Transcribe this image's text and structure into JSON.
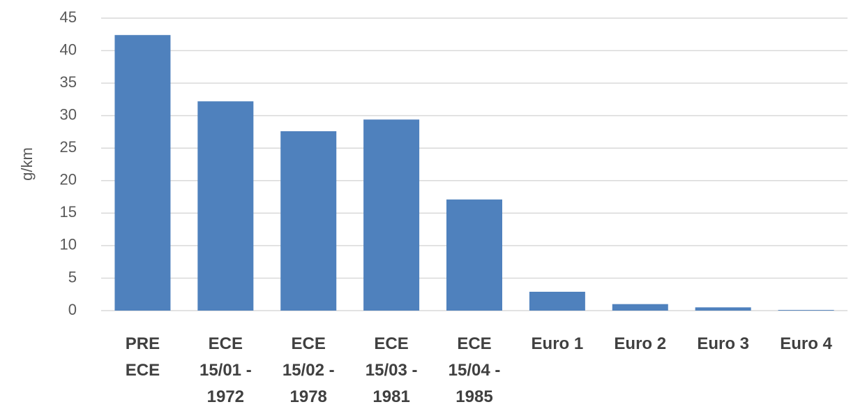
{
  "chart_data": {
    "type": "bar",
    "y_label": "g/km",
    "categories": [
      "PRE ECE",
      "ECE 15/01 - 1972",
      "ECE 15/02 - 1978",
      "ECE 15/03 - 1981",
      "ECE 15/04 - 1985",
      "Euro 1",
      "Euro 2",
      "Euro 3",
      "Euro 4"
    ],
    "values": [
      42.4,
      32.2,
      27.6,
      29.4,
      17.1,
      2.9,
      1.0,
      0.5,
      0.1
    ],
    "color": "#4f81bd",
    "ylim": [
      0,
      45
    ],
    "yticks": [
      0,
      5,
      10,
      15,
      20,
      25,
      30,
      35,
      40,
      45
    ],
    "grid": true
  }
}
